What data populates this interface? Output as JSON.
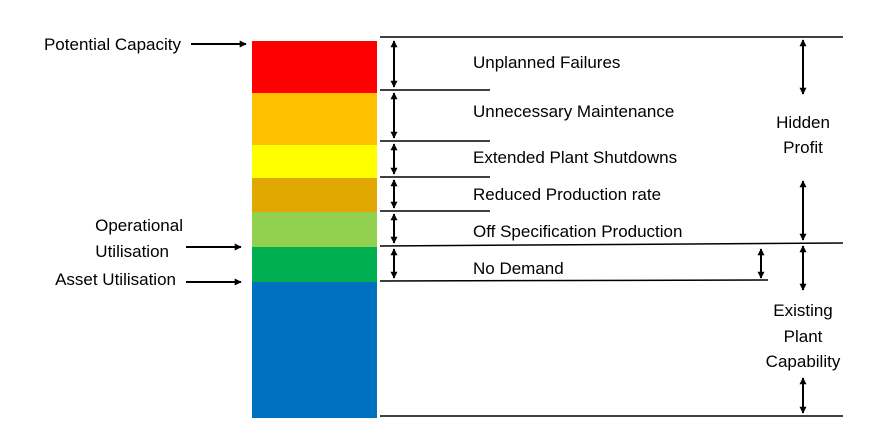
{
  "left_labels": {
    "potential_capacity": "Potential Capacity",
    "operational_line1": "Operational",
    "operational_line2": "Utilisation",
    "asset_utilisation": "Asset Utilisation"
  },
  "segments": [
    {
      "key": "unplanned",
      "label": "Unplanned Failures",
      "color": "#ff0000"
    },
    {
      "key": "maintenance",
      "label": "Unnecessary Maintenance",
      "color": "#ffc000"
    },
    {
      "key": "shutdowns",
      "label": "Extended Plant Shutdowns",
      "color": "#ffff00"
    },
    {
      "key": "production_rate",
      "label": "Reduced Production rate",
      "color": "#e0a800"
    },
    {
      "key": "off_spec",
      "label": "Off Specification Production",
      "color": "#92d050"
    },
    {
      "key": "no_demand",
      "label": "No Demand",
      "color": "#00b050"
    },
    {
      "key": "base",
      "label": "",
      "color": "#0070c0"
    }
  ],
  "right_labels": {
    "hidden_line1": "Hidden",
    "hidden_line2": "Profit",
    "existing_line1": "Existing",
    "existing_line2": "Plant",
    "existing_line3": "Capability"
  }
}
